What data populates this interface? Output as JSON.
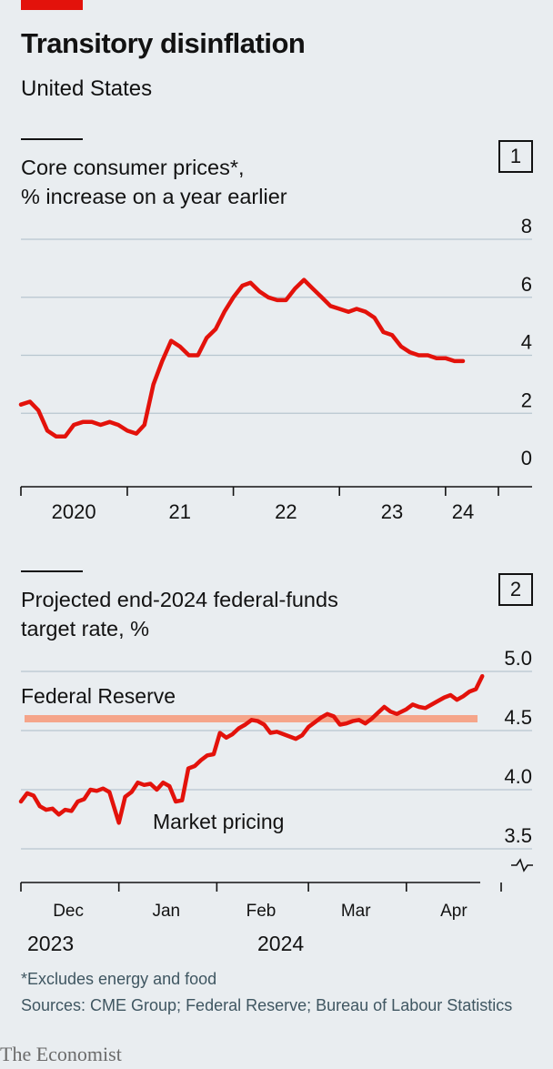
{
  "header": {
    "title": "Transitory disinflation",
    "subtitle": "United States"
  },
  "panel1": {
    "number": "1",
    "title_line1": "Core consumer prices*,",
    "title_line2": "% increase on a year earlier"
  },
  "panel2": {
    "number": "2",
    "title_line1": "Projected end-2024 federal-funds",
    "title_line2": "target rate, %",
    "annotation_fed": "Federal Reserve",
    "annotation_market": "Market pricing",
    "year_left": "2023",
    "year_right": "2024"
  },
  "footer": {
    "note": "*Excludes energy and food",
    "sources": "Sources: CME Group; Federal Reserve; Bureau of Labour Statistics",
    "brand": "The Economist"
  },
  "colors": {
    "line": "#e3120b",
    "fed_band": "#f5a58a",
    "grid": "#b7c6cf",
    "background": "#e9edf0"
  },
  "chart_data": [
    {
      "type": "line",
      "title": "Core consumer prices*, % increase on a year earlier",
      "ylim": [
        0,
        8
      ],
      "y_ticks": [
        "0",
        "2",
        "4",
        "6",
        "8"
      ],
      "y_tick_values": [
        0,
        2,
        4,
        6,
        8
      ],
      "x_tick_labels": [
        "2020",
        "21",
        "22",
        "23",
        "24"
      ],
      "x_tick_label_dates": [
        "2020-07",
        "2021-07",
        "2022-07",
        "2023-07",
        "2024-03"
      ],
      "x_boundary_ticks": [
        "2020-01",
        "2021-01",
        "2022-01",
        "2023-01",
        "2024-01",
        "2024-07"
      ],
      "xlim": [
        "2020-01",
        "2024-07"
      ],
      "series": [
        {
          "x": [
            "2020-01",
            "2020-02",
            "2020-03",
            "2020-04",
            "2020-05",
            "2020-06",
            "2020-07",
            "2020-08",
            "2020-09",
            "2020-10",
            "2020-11",
            "2020-12",
            "2021-01",
            "2021-02",
            "2021-03",
            "2021-04",
            "2021-05",
            "2021-06",
            "2021-07",
            "2021-08",
            "2021-09",
            "2021-10",
            "2021-11",
            "2021-12",
            "2022-01",
            "2022-02",
            "2022-03",
            "2022-04",
            "2022-05",
            "2022-06",
            "2022-07",
            "2022-08",
            "2022-09",
            "2022-10",
            "2022-11",
            "2022-12",
            "2023-01",
            "2023-02",
            "2023-03",
            "2023-04",
            "2023-05",
            "2023-06",
            "2023-07",
            "2023-08",
            "2023-09",
            "2023-10",
            "2023-11",
            "2023-12",
            "2024-01",
            "2024-02",
            "2024-03"
          ],
          "values": [
            2.3,
            2.4,
            2.1,
            1.4,
            1.2,
            1.2,
            1.6,
            1.7,
            1.7,
            1.6,
            1.7,
            1.6,
            1.4,
            1.3,
            1.6,
            3.0,
            3.8,
            4.5,
            4.3,
            4.0,
            4.0,
            4.6,
            4.9,
            5.5,
            6.0,
            6.4,
            6.5,
            6.2,
            6.0,
            5.9,
            5.9,
            6.3,
            6.6,
            6.3,
            6.0,
            5.7,
            5.6,
            5.5,
            5.6,
            5.5,
            5.3,
            4.8,
            4.7,
            4.3,
            4.1,
            4.0,
            4.0,
            3.9,
            3.9,
            3.8,
            3.8
          ]
        }
      ]
    },
    {
      "type": "line",
      "title": "Projected end-2024 federal-funds target rate, %",
      "ylim": [
        3.5,
        5.0
      ],
      "y_ticks": [
        "3.5",
        "4.0",
        "4.5",
        "5.0"
      ],
      "y_tick_values": [
        3.5,
        4.0,
        4.5,
        5.0
      ],
      "broken_axis": true,
      "x_tick_labels": [
        "Dec",
        "Jan",
        "Feb",
        "Mar",
        "Apr"
      ],
      "x_tick_label_dates": [
        "2023-12-16",
        "2024-01-16",
        "2024-02-15",
        "2024-03-16",
        "2024-04-16"
      ],
      "x_boundary_ticks": [
        "2023-12-01",
        "2024-01-01",
        "2024-02-01",
        "2024-03-01",
        "2024-04-01",
        "2024-05-01"
      ],
      "xlim": [
        "2023-12-01",
        "2024-05-01"
      ],
      "fed_projection": 4.6,
      "series": [
        {
          "x": [
            "2023-12-01",
            "2023-12-03",
            "2023-12-05",
            "2023-12-07",
            "2023-12-09",
            "2023-12-11",
            "2023-12-13",
            "2023-12-15",
            "2023-12-17",
            "2023-12-19",
            "2023-12-21",
            "2023-12-23",
            "2023-12-25",
            "2023-12-27",
            "2023-12-29",
            "2024-01-01",
            "2024-01-03",
            "2024-01-05",
            "2024-01-07",
            "2024-01-09",
            "2024-01-11",
            "2024-01-13",
            "2024-01-15",
            "2024-01-17",
            "2024-01-19",
            "2024-01-21",
            "2024-01-23",
            "2024-01-25",
            "2024-01-27",
            "2024-01-29",
            "2024-01-31",
            "2024-02-02",
            "2024-02-04",
            "2024-02-06",
            "2024-02-08",
            "2024-02-10",
            "2024-02-12",
            "2024-02-14",
            "2024-02-16",
            "2024-02-18",
            "2024-02-20",
            "2024-02-22",
            "2024-02-24",
            "2024-02-26",
            "2024-02-28",
            "2024-03-01",
            "2024-03-03",
            "2024-03-05",
            "2024-03-07",
            "2024-03-09",
            "2024-03-11",
            "2024-03-13",
            "2024-03-15",
            "2024-03-17",
            "2024-03-19",
            "2024-03-21",
            "2024-03-23",
            "2024-03-25",
            "2024-03-27",
            "2024-03-29",
            "2024-04-01",
            "2024-04-03",
            "2024-04-05",
            "2024-04-07",
            "2024-04-09",
            "2024-04-11",
            "2024-04-13",
            "2024-04-15",
            "2024-04-17",
            "2024-04-19",
            "2024-04-21",
            "2024-04-23",
            "2024-04-25"
          ],
          "values": [
            3.9,
            3.97,
            3.95,
            3.86,
            3.83,
            3.84,
            3.79,
            3.83,
            3.82,
            3.9,
            3.92,
            4.0,
            3.99,
            4.01,
            3.98,
            3.72,
            3.94,
            3.98,
            4.06,
            4.04,
            4.05,
            4.0,
            4.06,
            4.03,
            3.9,
            3.91,
            4.18,
            4.2,
            4.25,
            4.29,
            4.3,
            4.48,
            4.44,
            4.47,
            4.52,
            4.55,
            4.59,
            4.58,
            4.55,
            4.48,
            4.49,
            4.47,
            4.45,
            4.43,
            4.46,
            4.53,
            4.57,
            4.61,
            4.64,
            4.62,
            4.55,
            4.56,
            4.58,
            4.59,
            4.56,
            4.6,
            4.65,
            4.7,
            4.66,
            4.64,
            4.68,
            4.72,
            4.7,
            4.69,
            4.72,
            4.75,
            4.78,
            4.8,
            4.76,
            4.79,
            4.83,
            4.85,
            4.96
          ]
        }
      ]
    }
  ]
}
